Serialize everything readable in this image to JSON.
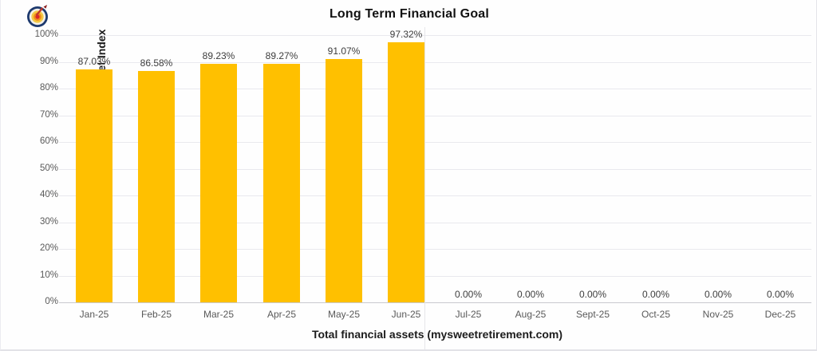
{
  "chart": {
    "title": "Long Term Financial Goal",
    "y_axis_title": "Financial Target Index",
    "x_axis_title": "Total financial assets (mysweetretirement.com)",
    "icon": "target-dartboard-icon",
    "colors": {
      "bar": "#FFC000",
      "gridline": "#e9e9ee",
      "axis_line": "#c9c9cf",
      "tick_label": "#595959",
      "value_label": "#3d3d3d",
      "title_text": "#121212"
    }
  },
  "chart_data": {
    "type": "bar",
    "title": "Long Term Financial Goal",
    "xlabel": "Total financial assets (mysweetretirement.com)",
    "ylabel": "Financial Target Index",
    "categories": [
      "Jan-25",
      "Feb-25",
      "Mar-25",
      "Apr-25",
      "May-25",
      "Jun-25",
      "Jul-25",
      "Aug-25",
      "Sept-25",
      "Oct-25",
      "Nov-25",
      "Dec-25"
    ],
    "values": [
      87.03,
      86.58,
      89.23,
      89.27,
      91.07,
      97.32,
      0,
      0,
      0,
      0,
      0,
      0
    ],
    "value_labels": [
      "87.03%",
      "86.58%",
      "89.23%",
      "89.27%",
      "91.07%",
      "97.32%",
      "0.00%",
      "0.00%",
      "0.00%",
      "0.00%",
      "0.00%",
      "0.00%"
    ],
    "ylim": [
      0,
      100
    ],
    "ytick_step": 10,
    "ytick_labels": [
      "0%",
      "10%",
      "20%",
      "30%",
      "40%",
      "50%",
      "60%",
      "70%",
      "80%",
      "90%",
      "100%"
    ],
    "grid": true,
    "legend": false,
    "bar_color": "#FFC000"
  }
}
